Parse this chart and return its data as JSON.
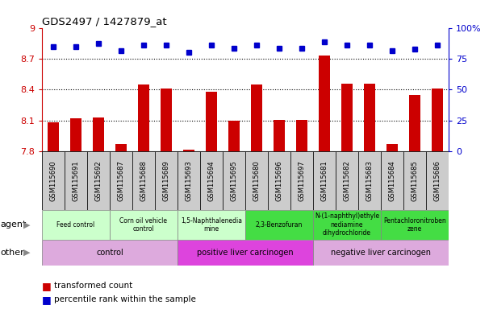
{
  "title": "GDS2497 / 1427879_at",
  "samples": [
    "GSM115690",
    "GSM115691",
    "GSM115692",
    "GSM115687",
    "GSM115688",
    "GSM115689",
    "GSM115693",
    "GSM115694",
    "GSM115695",
    "GSM115680",
    "GSM115696",
    "GSM115697",
    "GSM115681",
    "GSM115682",
    "GSM115683",
    "GSM115684",
    "GSM115685",
    "GSM115686"
  ],
  "bar_values": [
    8.08,
    8.12,
    8.13,
    7.87,
    8.45,
    8.41,
    7.82,
    8.38,
    8.1,
    8.45,
    8.11,
    8.11,
    8.73,
    8.46,
    8.46,
    7.87,
    8.35,
    8.41
  ],
  "percentile_values": [
    8.82,
    8.82,
    8.85,
    8.78,
    8.83,
    8.83,
    8.76,
    8.83,
    8.8,
    8.83,
    8.8,
    8.8,
    8.86,
    8.83,
    8.83,
    8.78,
    8.79,
    8.83
  ],
  "bar_color": "#cc0000",
  "percentile_color": "#0000cc",
  "ylim": [
    7.8,
    9.0
  ],
  "yticks": [
    7.8,
    8.1,
    8.4,
    8.7,
    9.0
  ],
  "ytick_labels": [
    "7.8",
    "8.1",
    "8.4",
    "8.7",
    "9"
  ],
  "right_yticks": [
    0,
    25,
    50,
    75,
    100
  ],
  "right_ytick_labels": [
    "0",
    "25",
    "50",
    "75",
    "100%"
  ],
  "right_ytick_positions": [
    7.8,
    8.1,
    8.4,
    8.7,
    9.0
  ],
  "agent_groups": [
    {
      "label": "Feed control",
      "start": 0,
      "end": 3,
      "color": "#ccffcc"
    },
    {
      "label": "Corn oil vehicle\ncontrol",
      "start": 3,
      "end": 6,
      "color": "#ccffcc"
    },
    {
      "label": "1,5-Naphthalenedia\nmine",
      "start": 6,
      "end": 9,
      "color": "#ccffcc"
    },
    {
      "label": "2,3-Benzofuran",
      "start": 9,
      "end": 12,
      "color": "#44dd44"
    },
    {
      "label": "N-(1-naphthyl)ethyle\nnediamine\ndihydrochloride",
      "start": 12,
      "end": 15,
      "color": "#44dd44"
    },
    {
      "label": "Pentachloronitroben\nzene",
      "start": 15,
      "end": 18,
      "color": "#44dd44"
    }
  ],
  "other_groups": [
    {
      "label": "control",
      "start": 0,
      "end": 6,
      "color": "#ddaadd"
    },
    {
      "label": "positive liver carcinogen",
      "start": 6,
      "end": 12,
      "color": "#dd44dd"
    },
    {
      "label": "negative liver carcinogen",
      "start": 12,
      "end": 18,
      "color": "#ddaadd"
    }
  ],
  "tick_label_bg": "#cccccc",
  "background_color": "#ffffff",
  "tick_color_left": "#cc0000",
  "tick_color_right": "#0000cc",
  "legend_bar_label": "transformed count",
  "legend_pct_label": "percentile rank within the sample",
  "agent_label": "agent",
  "other_label": "other"
}
